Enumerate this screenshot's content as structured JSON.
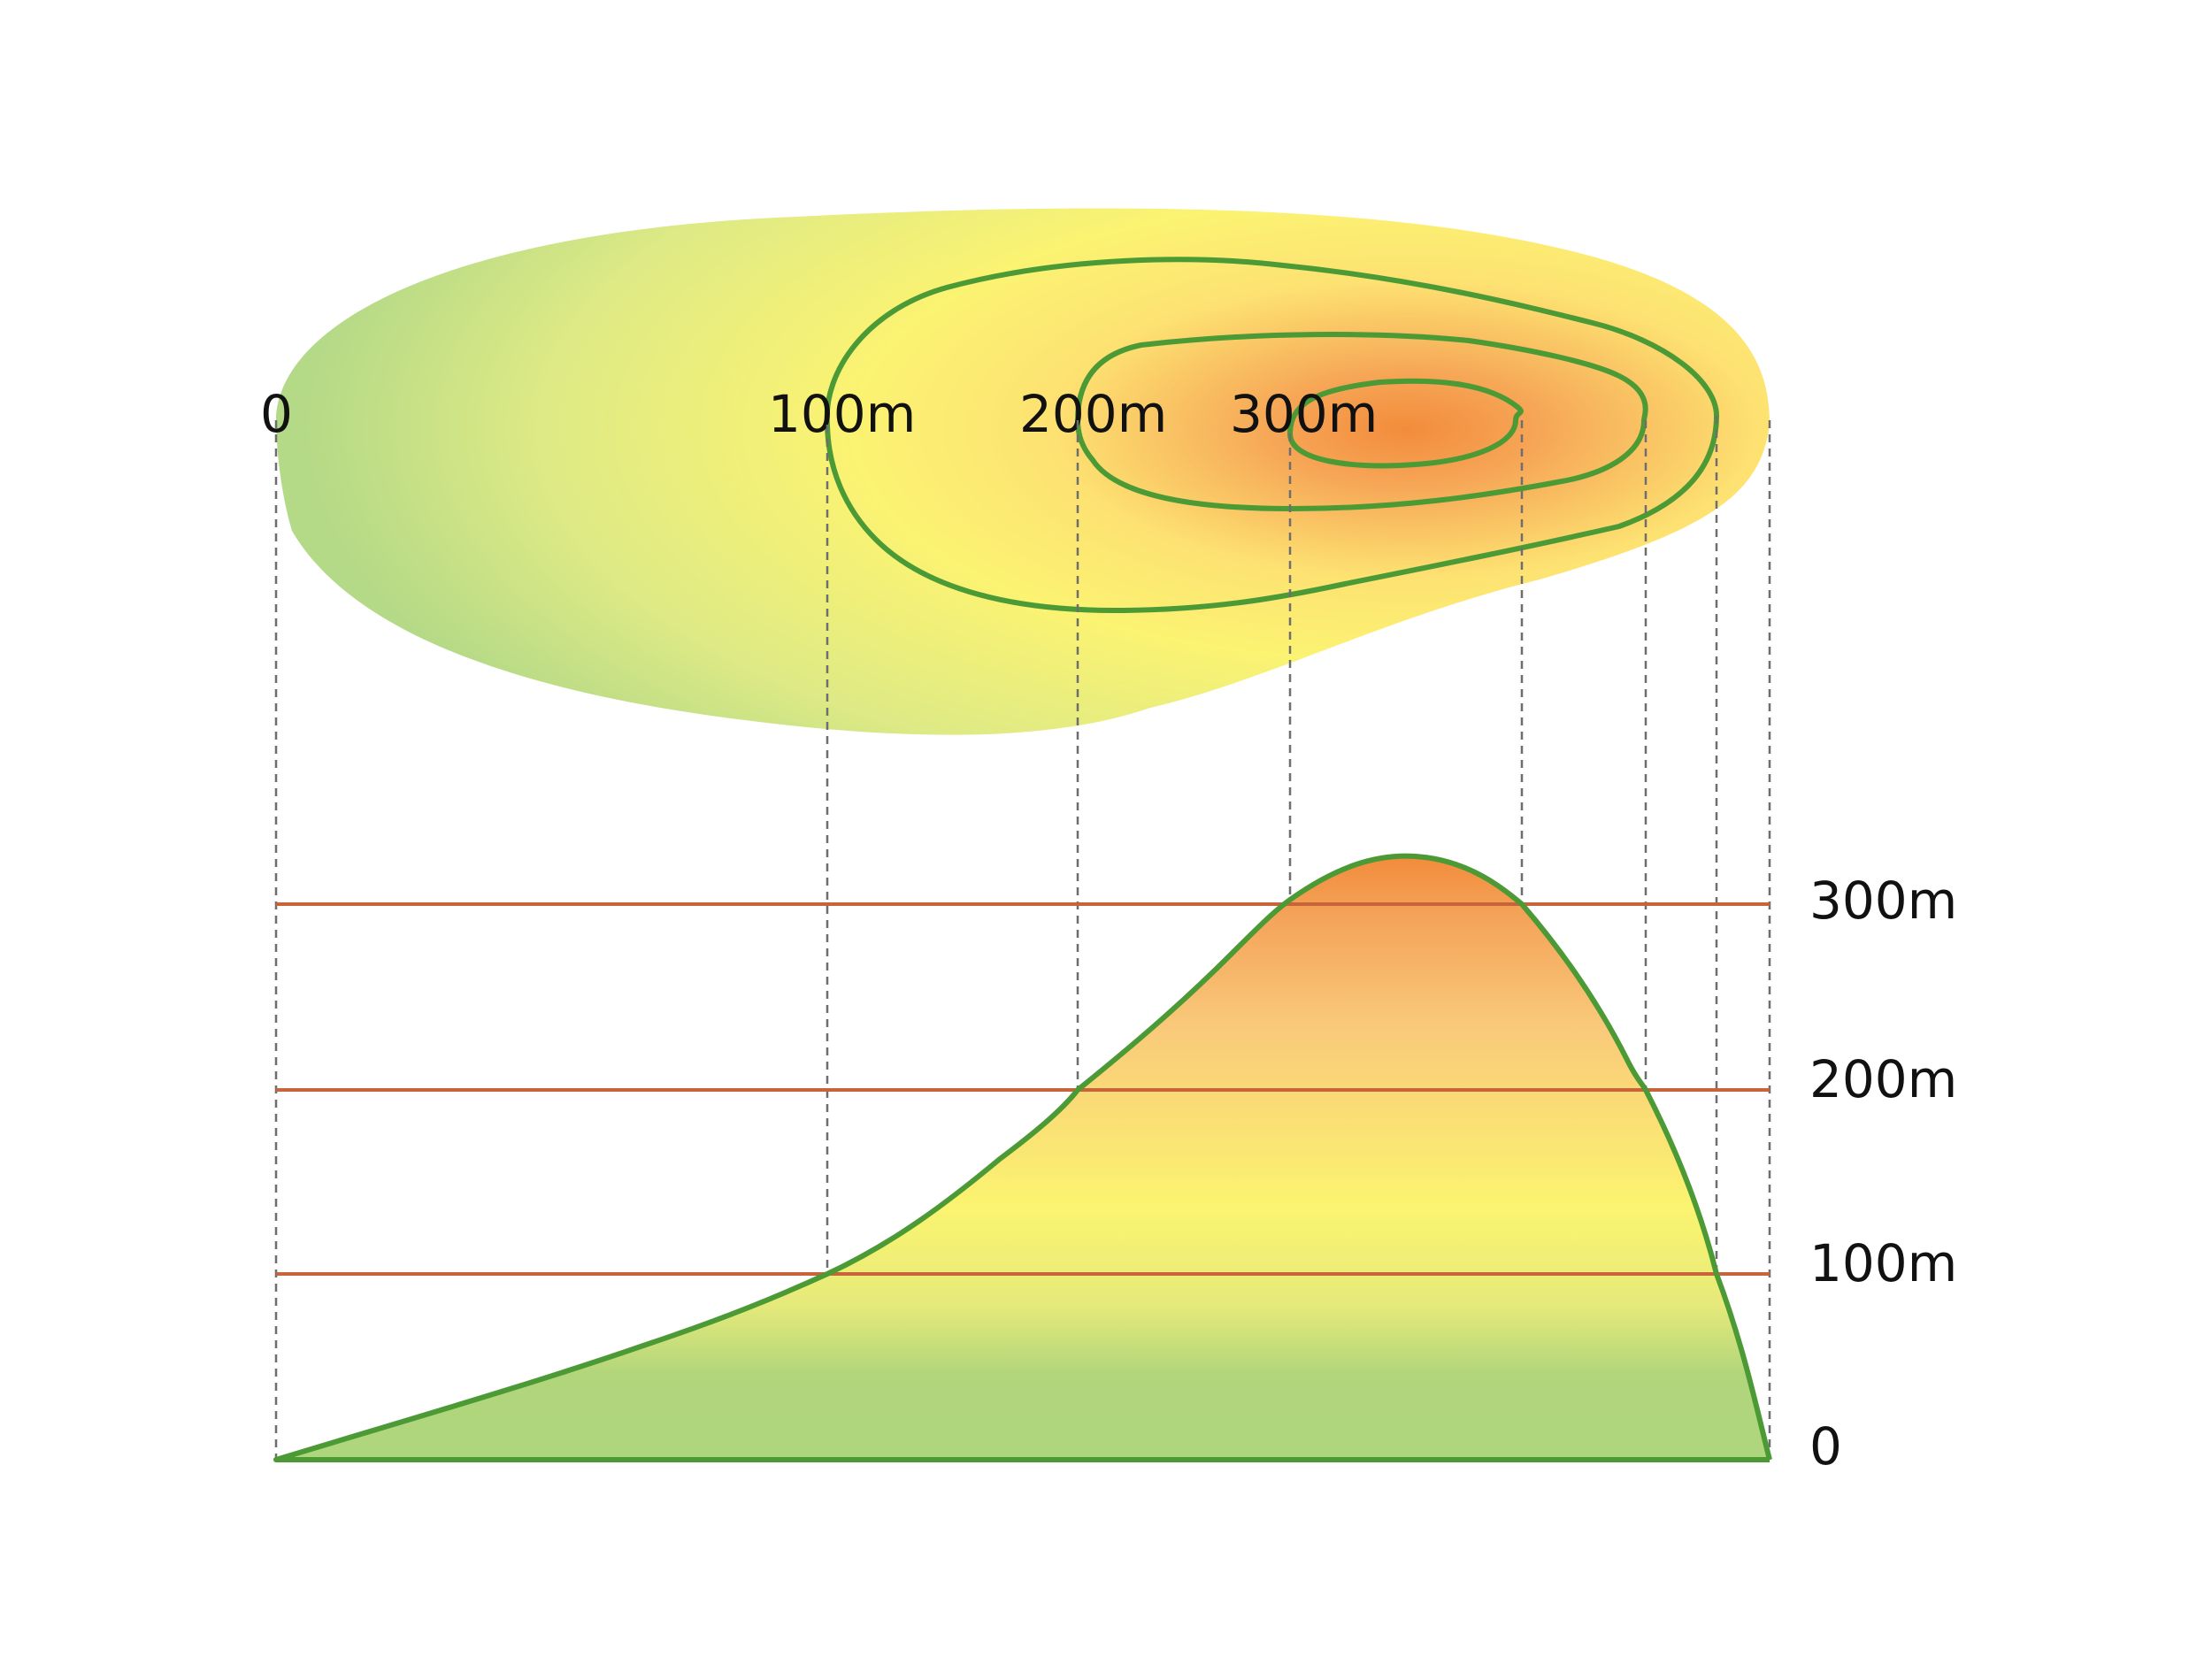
{
  "map_labels": {
    "zero": "0",
    "l100": "100m",
    "l200": "200m",
    "l300": "300m"
  },
  "profile_labels": {
    "zero": "0",
    "l100": "100m",
    "l200": "200m",
    "l300": "300m"
  },
  "elevation_levels_m": [
    0,
    100,
    200,
    300
  ],
  "colors": {
    "contour_line": "#4c9a36",
    "elevation_line": "#c8643a",
    "guide_line": "#6e6e6e",
    "low_green": "#aed67d",
    "mid_yellow": "#fbf372",
    "peak_orange": "#f28c3c"
  }
}
